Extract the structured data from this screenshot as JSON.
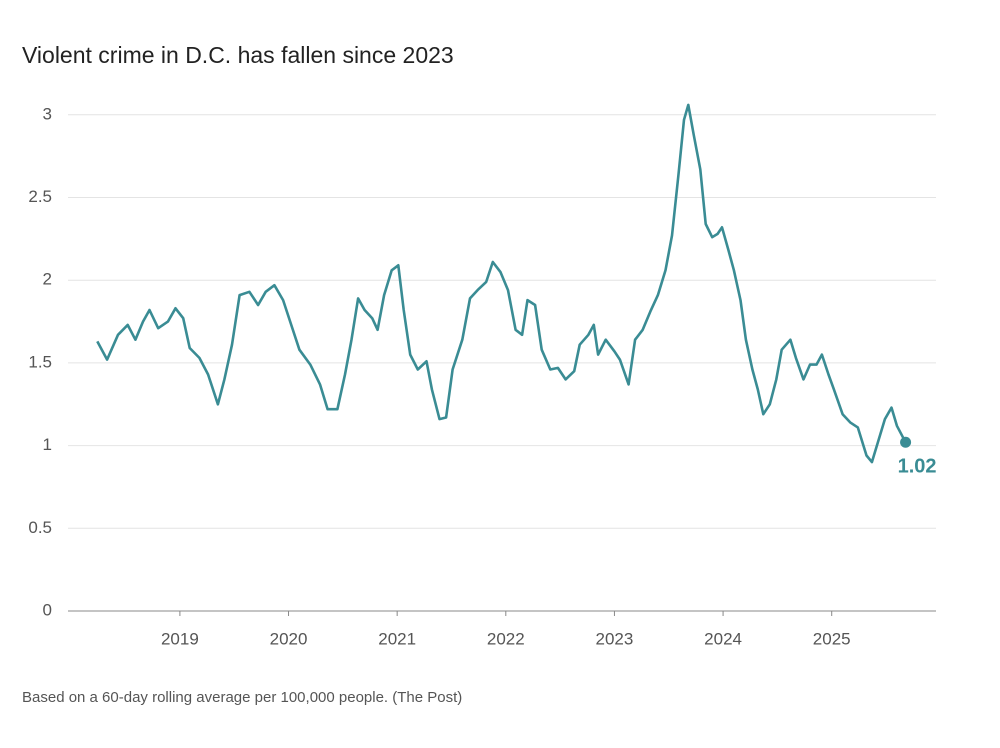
{
  "chart_data": {
    "type": "line",
    "title": "Violent crime in D.C. has fallen since 2023",
    "footnote": "Based on a 60-day rolling average per 100,000 people. (The Post)",
    "x": [
      2018.24,
      2018.33,
      2018.43,
      2018.52,
      2018.59,
      2018.66,
      2018.72,
      2018.8,
      2018.89,
      2018.96,
      2019.03,
      2019.09,
      2019.18,
      2019.26,
      2019.35,
      2019.41,
      2019.48,
      2019.55,
      2019.64,
      2019.72,
      2019.79,
      2019.87,
      2019.95,
      2020.01,
      2020.1,
      2020.2,
      2020.29,
      2020.36,
      2020.45,
      2020.52,
      2020.58,
      2020.64,
      2020.7,
      2020.77,
      2020.82,
      2020.88,
      2020.95,
      2021.01,
      2021.06,
      2021.12,
      2021.19,
      2021.27,
      2021.32,
      2021.39,
      2021.45,
      2021.51,
      2021.6,
      2021.67,
      2021.74,
      2021.82,
      2021.88,
      2021.95,
      2022.02,
      2022.09,
      2022.15,
      2022.2,
      2022.27,
      2022.33,
      2022.41,
      2022.48,
      2022.55,
      2022.63,
      2022.68,
      2022.76,
      2022.81,
      2022.85,
      2022.92,
      2023.0,
      2023.05,
      2023.13,
      2023.19,
      2023.26,
      2023.33,
      2023.4,
      2023.47,
      2023.53,
      2023.59,
      2023.64,
      2023.68,
      2023.73,
      2023.79,
      2023.84,
      2023.9,
      2023.95,
      2023.99,
      2024.05,
      2024.1,
      2024.16,
      2024.21,
      2024.27,
      2024.32,
      2024.37,
      2024.43,
      2024.49,
      2024.54,
      2024.62,
      2024.67,
      2024.74,
      2024.8,
      2024.86,
      2024.91,
      2024.97,
      2025.02,
      2025.1,
      2025.17,
      2025.24,
      2025.32,
      2025.37,
      2025.43,
      2025.49,
      2025.55,
      2025.6,
      2025.68
    ],
    "series": [
      {
        "name": "Violent crime",
        "color": "#3a8c94",
        "values": [
          1.63,
          1.52,
          1.67,
          1.73,
          1.64,
          1.75,
          1.82,
          1.71,
          1.75,
          1.83,
          1.77,
          1.59,
          1.53,
          1.43,
          1.25,
          1.4,
          1.61,
          1.91,
          1.93,
          1.85,
          1.93,
          1.97,
          1.88,
          1.76,
          1.58,
          1.49,
          1.37,
          1.22,
          1.22,
          1.43,
          1.64,
          1.89,
          1.82,
          1.77,
          1.7,
          1.91,
          2.06,
          2.09,
          1.82,
          1.55,
          1.46,
          1.51,
          1.34,
          1.16,
          1.17,
          1.46,
          1.64,
          1.89,
          1.94,
          1.99,
          2.11,
          2.05,
          1.94,
          1.7,
          1.67,
          1.88,
          1.85,
          1.58,
          1.46,
          1.47,
          1.4,
          1.45,
          1.61,
          1.67,
          1.73,
          1.55,
          1.64,
          1.57,
          1.52,
          1.37,
          1.64,
          1.7,
          1.81,
          1.91,
          2.06,
          2.27,
          2.64,
          2.97,
          3.06,
          2.88,
          2.67,
          2.34,
          2.26,
          2.28,
          2.32,
          2.18,
          2.06,
          1.88,
          1.64,
          1.46,
          1.34,
          1.19,
          1.25,
          1.4,
          1.58,
          1.64,
          1.53,
          1.4,
          1.49,
          1.49,
          1.55,
          1.43,
          1.34,
          1.19,
          1.14,
          1.11,
          0.94,
          0.9,
          1.03,
          1.16,
          1.23,
          1.12,
          1.02
        ]
      }
    ],
    "xlim": [
      2017.97,
      2025.96
    ],
    "xticks": [
      2019,
      2020,
      2021,
      2022,
      2023,
      2024,
      2025
    ],
    "ylim": [
      0,
      3.15
    ],
    "yticks": [
      0,
      0.5,
      1,
      1.5,
      2,
      2.5,
      3
    ],
    "grid": true
  }
}
